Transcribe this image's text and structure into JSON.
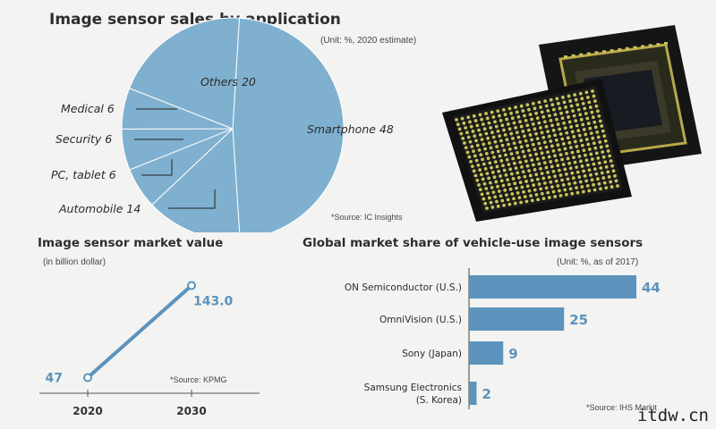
{
  "pie_title": "Image sensor sales by application",
  "pie_unit": "(Unit: %, 2020 estimate)",
  "pie_source": "*Source: IC Insights",
  "line_title": "Image sensor market value",
  "line_unit": "(in billion dollar)",
  "line_source": "*Source: KPMG",
  "bar_title": "Global market share of vehicle-use image sensors",
  "bar_unit": "(Unit: %, as of 2017)",
  "bar_source": "*Source: IHS Markit",
  "watermark": "itdw.cn",
  "colors": {
    "accent": "#5b93bd",
    "pie_fill": "#7fb0cf",
    "chip": "#111111",
    "pad": "#c9c45a"
  },
  "chart_data": [
    {
      "type": "pie",
      "title": "Image sensor sales by application",
      "unit": "%",
      "slices": [
        {
          "label": "Smartphone 48",
          "name": "Smartphone",
          "value": 48
        },
        {
          "label": "Automobile 14",
          "name": "Automobile",
          "value": 14
        },
        {
          "label": "PC, tablet 6",
          "name": "PC, tablet",
          "value": 6
        },
        {
          "label": "Security 6",
          "name": "Security",
          "value": 6
        },
        {
          "label": "Medical 6",
          "name": "Medical",
          "value": 6
        },
        {
          "label": "Others 20",
          "name": "Others",
          "value": 20
        }
      ]
    },
    {
      "type": "line",
      "title": "Image sensor market value",
      "ylabel": "(in billion dollar)",
      "x": [
        "2020",
        "2030"
      ],
      "values": [
        47,
        143.0
      ],
      "value_labels": [
        "47",
        "143.0"
      ]
    },
    {
      "type": "bar",
      "title": "Global market share of vehicle-use image sensors",
      "orientation": "horizontal",
      "categories": [
        "ON Semiconductor (U.S.)",
        "OmniVision (U.S.)",
        "Sony (Japan)",
        "Samsung Electronics (S. Korea)"
      ],
      "category_lines": [
        [
          "ON Semiconductor (U.S.)"
        ],
        [
          "OmniVision (U.S.)"
        ],
        [
          "Sony (Japan)"
        ],
        [
          "Samsung Electronics",
          "(S. Korea)"
        ]
      ],
      "values": [
        44,
        25,
        9,
        2
      ],
      "value_labels": [
        "44",
        "25",
        "9",
        "2"
      ]
    }
  ]
}
